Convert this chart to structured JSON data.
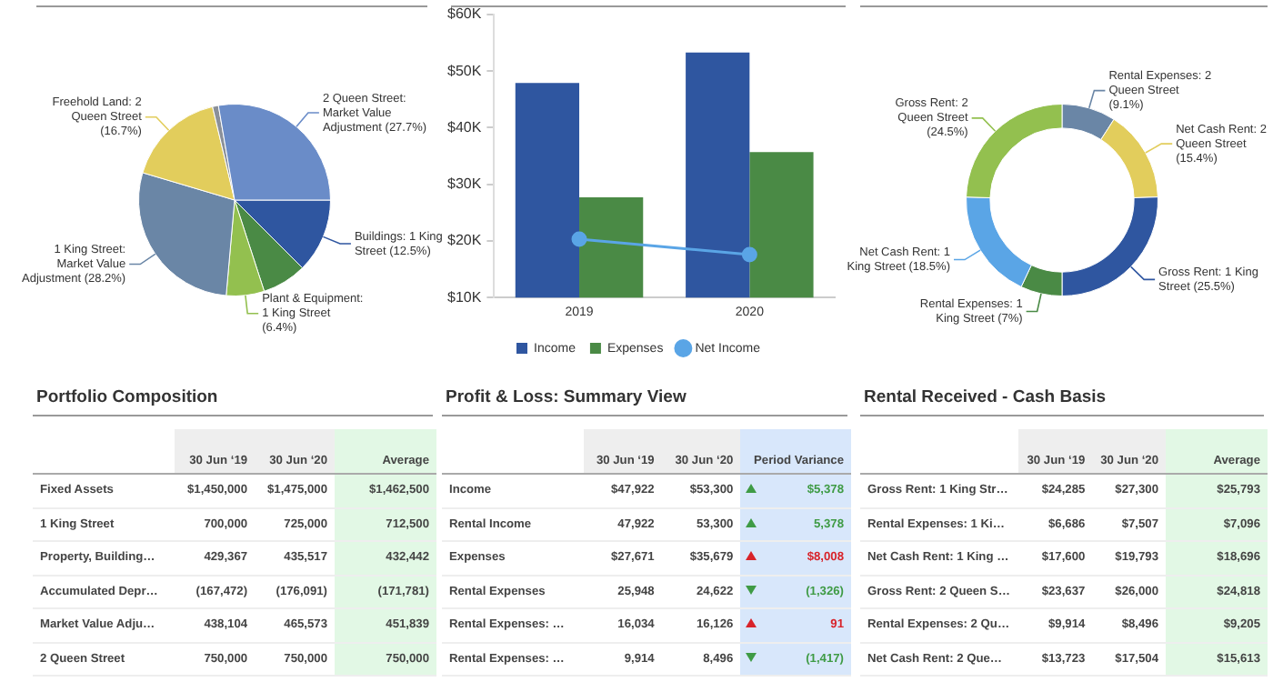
{
  "chart_data": [
    {
      "type": "pie",
      "categories": [
        "Buildings: 1 King Street",
        null,
        "Plant & Equipment: 1 King Street",
        "1 King Street: Market Value Adjustment",
        "Freehold Land: 2 Queen Street",
        null,
        "2 Queen Street: Market Value Adjustment"
      ],
      "values": [
        12.5,
        7.5,
        6.4,
        28.2,
        16.7,
        1.0,
        27.7
      ],
      "value_labels": [
        "(12.5%)",
        null,
        "(6.4%)",
        "(28.2%)",
        "(16.7%)",
        null,
        "(27.7%)"
      ],
      "colors": [
        "#2f56a0",
        "#4a8a45",
        "#93c04f",
        "#6a86a6",
        "#e2cd5c",
        "#8a9099",
        "#6a8cc8"
      ]
    },
    {
      "type": "bar",
      "categories": [
        "2019",
        "2020"
      ],
      "series": [
        {
          "name": "Income",
          "type": "bar",
          "color": "#2f56a0",
          "values": [
            47900,
            53300
          ]
        },
        {
          "name": "Expenses",
          "type": "bar",
          "color": "#4a8a45",
          "values": [
            27700,
            35700
          ]
        },
        {
          "name": "Net Income",
          "type": "line",
          "color": "#5aa5e6",
          "values": [
            20300,
            17600
          ]
        }
      ],
      "ylim": [
        10000,
        60000
      ],
      "yticks": [
        {
          "value": 10000,
          "label": "$10K"
        },
        {
          "value": 20000,
          "label": "$20K"
        },
        {
          "value": 30000,
          "label": "$30K"
        },
        {
          "value": 40000,
          "label": "$40K"
        },
        {
          "value": 50000,
          "label": "$50K"
        },
        {
          "value": 60000,
          "label": "$60K"
        }
      ],
      "grid": false,
      "legend": "bottom",
      "marker": "circle"
    },
    {
      "type": "donut",
      "categories": [
        "Rental Expenses: 2 Queen Street",
        "Net Cash Rent: 2 Queen Street",
        "Gross Rent: 1 King Street",
        "Rental Expenses: 1 King Street",
        "Net Cash Rent: 1 King Street",
        "Gross Rent: 2 Queen Street"
      ],
      "values": [
        9.1,
        15.4,
        25.5,
        7,
        18.5,
        24.5
      ],
      "value_labels": [
        "(9.1%)",
        "(15.4%)",
        "(25.5%)",
        "(7%)",
        "(18.5%)",
        "(24.5%)"
      ],
      "colors": [
        "#6a86a6",
        "#e2cd5c",
        "#2f56a0",
        "#4a8a45",
        "#5aa5e6",
        "#93c04f"
      ]
    },
    {
      "type": "other",
      "title": "Portfolio Composition",
      "categories": [
        "30 Jun ‘19",
        "30 Jun ‘20",
        "Average"
      ],
      "y_categories": [
        "Fixed Assets",
        "1 King Street",
        "Property, Building…",
        "Accumulated Depr…",
        "Market Value Adju…",
        "2 Queen Street"
      ],
      "cell_labels": [
        [
          "$1,450,000",
          "$1,475,000",
          "$1,462,500"
        ],
        [
          "700,000",
          "725,000",
          "712,500"
        ],
        [
          "429,367",
          "435,517",
          "432,442"
        ],
        [
          "(167,472)",
          "(176,091)",
          "(171,781)"
        ],
        [
          "438,104",
          "465,573",
          "451,839"
        ],
        [
          "750,000",
          "750,000",
          "750,000"
        ]
      ]
    },
    {
      "type": "other",
      "title": "Profit & Loss: Summary View",
      "categories": [
        "Income",
        "Rental Income",
        "Expenses",
        "Rental Expenses",
        "Rental Expenses: …",
        "Rental Expenses: …"
      ],
      "series": [
        {
          "name": "30 Jun ‘19",
          "values": [
            47922,
            47922,
            27671,
            25948,
            16034,
            9914
          ],
          "value_labels": [
            "$47,922",
            "47,922",
            "$27,671",
            "25,948",
            "16,034",
            "9,914"
          ]
        },
        {
          "name": "30 Jun ‘20",
          "values": [
            53300,
            53300,
            35679,
            24622,
            16126,
            8496
          ],
          "value_labels": [
            "$53,300",
            "53,300",
            "$35,679",
            "24,622",
            "16,126",
            "8,496"
          ]
        },
        {
          "name": "Period Variance",
          "values": [
            5378,
            5378,
            8008,
            -1326,
            91,
            -1417
          ],
          "value_labels": [
            "$5,378",
            "5,378",
            "$8,008",
            "(1,326)",
            "91",
            "(1,417)"
          ],
          "colors": [
            "#3f9b45",
            "#3f9b45",
            "#d8232a",
            "#3f9b45",
            "#d8232a",
            "#3f9b45"
          ]
        }
      ]
    },
    {
      "type": "other",
      "title": "Rental Received - Cash Basis",
      "categories": [
        "30 Jun ‘19",
        "30 Jun ‘20",
        "Average"
      ],
      "y_categories": [
        "Gross Rent: 1 King Str…",
        "Rental Expenses: 1 Ki…",
        "Net Cash Rent: 1 King …",
        "Gross Rent: 2 Queen S…",
        "Rental Expenses: 2 Qu…",
        "Net Cash Rent: 2 Que…"
      ],
      "cell_labels": [
        [
          "$24,285",
          "$27,300",
          "$25,793"
        ],
        [
          "$6,686",
          "$7,507",
          "$7,096"
        ],
        [
          "$17,600",
          "$19,793",
          "$18,696"
        ],
        [
          "$23,637",
          "$26,000",
          "$24,818"
        ],
        [
          "$9,914",
          "$8,496",
          "$9,205"
        ],
        [
          "$13,723",
          "$17,504",
          "$15,613"
        ]
      ]
    }
  ]
}
